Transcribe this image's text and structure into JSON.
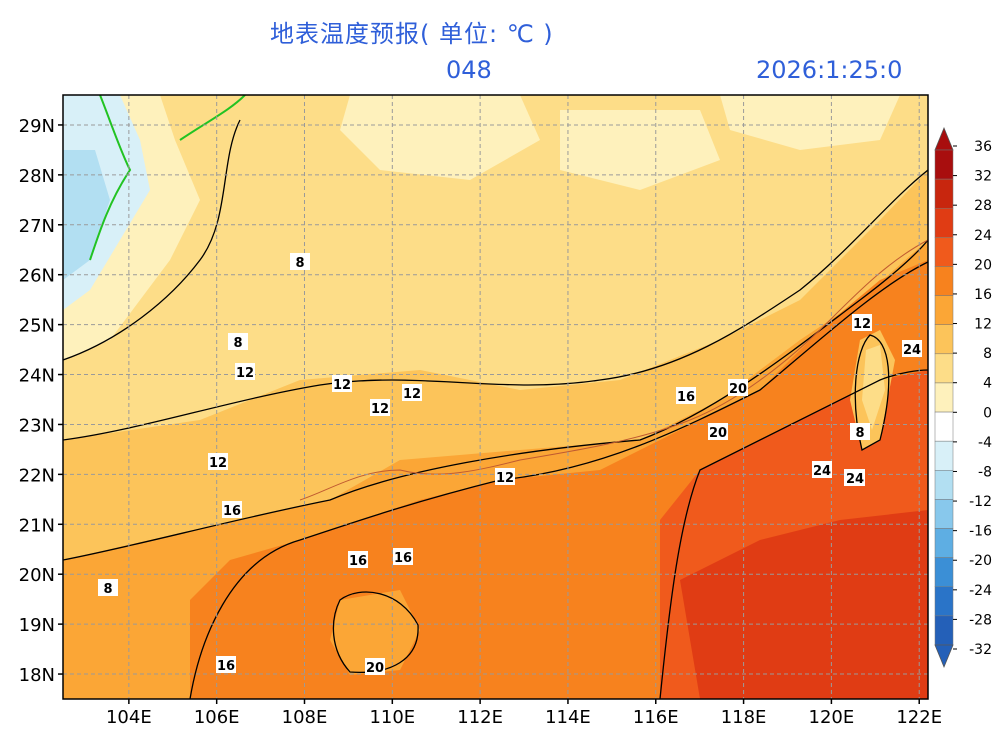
{
  "header": {
    "title": "地表温度预报( 单位: ℃ )",
    "forecast_hour": "048",
    "valid_time": "2026:1:25:0"
  },
  "map": {
    "lat_labels": [
      "29N",
      "28N",
      "27N",
      "26N",
      "25N",
      "24N",
      "23N",
      "22N",
      "21N",
      "20N",
      "19N",
      "18N"
    ],
    "lon_labels": [
      "104E",
      "106E",
      "108E",
      "110E",
      "112E",
      "114E",
      "116E",
      "118E",
      "120E",
      "122E"
    ],
    "lon_range": [
      102.5,
      122.2
    ],
    "lat_range": [
      17.5,
      29.6
    ],
    "grid": "dashed"
  },
  "colorbar": {
    "labels": [
      "36",
      "32",
      "28",
      "24",
      "20",
      "16",
      "12",
      "8",
      "4",
      "0",
      "-4",
      "-8",
      "-12",
      "-16",
      "-20",
      "-24",
      "-28",
      "-32"
    ],
    "colors": [
      "#a80e0e",
      "#c8260e",
      "#e03c14",
      "#f05a1c",
      "#f7821e",
      "#fba636",
      "#fcc45a",
      "#fddd88",
      "#fef1bc",
      "#ffffff",
      "#d8f0f8",
      "#b2dff2",
      "#88c8ec",
      "#5eaee3",
      "#3b8fd6",
      "#2a74c8",
      "#2460b8"
    ]
  },
  "contour_labels": [
    "8",
    "12",
    "12",
    "12",
    "12",
    "16",
    "16",
    "20",
    "20",
    "16",
    "12",
    "8",
    "24",
    "20",
    "16",
    "8",
    "12",
    "12",
    "24",
    "16",
    "8",
    "20",
    "24"
  ]
}
